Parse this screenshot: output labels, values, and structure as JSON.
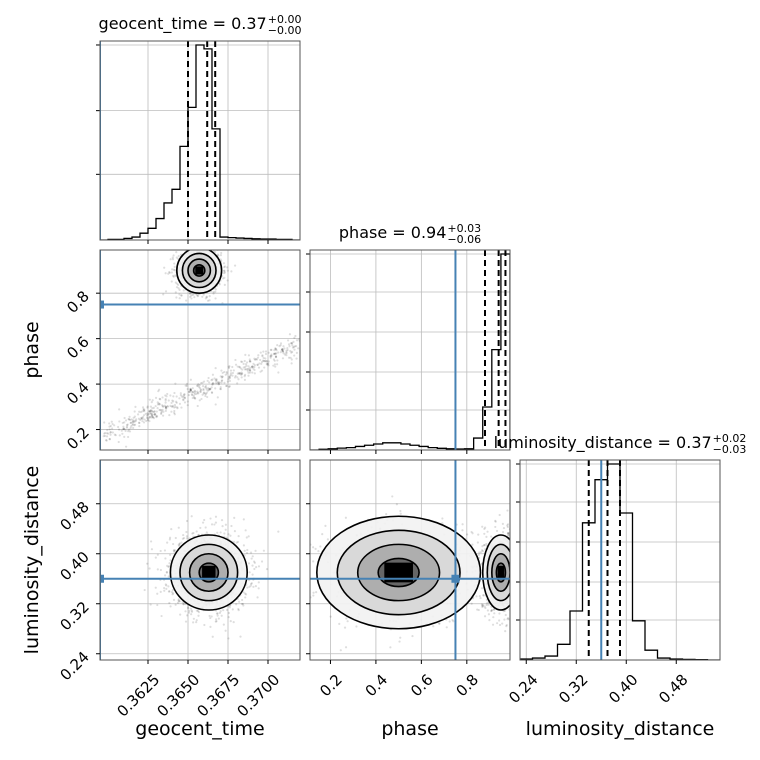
{
  "chart_data": {
    "type": "corner",
    "parameters": [
      "geocent_time",
      "phase",
      "luminosity_distance"
    ],
    "truth": {
      "geocent_time": 0.3595,
      "phase": 0.75,
      "luminosity_distance": 0.36
    },
    "truth_color": "#4682b4",
    "axes": {
      "geocent_time": {
        "range": [
          0.3595,
          0.372
        ],
        "ticks": [
          0.3625,
          0.365,
          0.3675,
          0.37
        ],
        "tick_labels": [
          "0.3625",
          "0.3650",
          "0.3675",
          "0.3700"
        ]
      },
      "phase": {
        "range": [
          0.11,
          0.99
        ],
        "ticks": [
          0.2,
          0.4,
          0.6,
          0.8
        ],
        "tick_labels": [
          "0.2",
          "0.4",
          "0.6",
          "0.8"
        ]
      },
      "luminosity_distance": {
        "range": [
          0.23,
          0.55
        ],
        "ticks": [
          0.24,
          0.32,
          0.4,
          0.48
        ],
        "tick_labels": [
          "0.24",
          "0.32",
          "0.40",
          "0.48"
        ]
      }
    },
    "titles": [
      {
        "param": "geocent_time",
        "text": "geocent_time = 0.37",
        "sup": "+0.00",
        "sub": "−0.00"
      },
      {
        "param": "phase",
        "text": "phase = 0.94",
        "sup": "+0.03",
        "sub": "−0.06"
      },
      {
        "param": "luminosity_distance",
        "text": "luminosity_distance = 0.37",
        "sup": "+0.02",
        "sub": "−0.03"
      }
    ],
    "histograms": {
      "geocent_time": {
        "bin_edges": [
          0.3595,
          0.36,
          0.3605,
          0.361,
          0.3615,
          0.362,
          0.3625,
          0.363,
          0.3635,
          0.364,
          0.3645,
          0.365,
          0.3655,
          0.366,
          0.3665,
          0.367,
          0.3675,
          0.368,
          0.3685,
          0.369,
          0.3695,
          0.37,
          0.3705,
          0.371,
          0.3715,
          0.372
        ],
        "counts": [
          0,
          0.3,
          0.3,
          0.8,
          1.5,
          3.5,
          6,
          11,
          19,
          26,
          48,
          68,
          100,
          98,
          57,
          1.5,
          1.2,
          1,
          0.8,
          0.6,
          0.5,
          0.5,
          0.3,
          0.3,
          0
        ],
        "quantiles": [
          0.365,
          0.3662,
          0.3667
        ],
        "ytick_fractions": [
          0.33,
          0.65,
          0.98
        ]
      },
      "phase": {
        "bin_edges": [
          0.11,
          0.15,
          0.19,
          0.23,
          0.27,
          0.31,
          0.35,
          0.39,
          0.43,
          0.47,
          0.51,
          0.55,
          0.59,
          0.63,
          0.67,
          0.71,
          0.75,
          0.79,
          0.83,
          0.87,
          0.91,
          0.95,
          0.99
        ],
        "counts": [
          0,
          0.3,
          0.5,
          0.8,
          1,
          1.5,
          2,
          2.5,
          3,
          3,
          2.5,
          2,
          1.5,
          1,
          0.7,
          0.5,
          0.4,
          0.5,
          5,
          18,
          42,
          82
        ],
        "quantiles": [
          0.88,
          0.94,
          0.97
        ],
        "ytick_fractions": [
          0.2,
          0.39,
          0.59,
          0.79,
          0.98
        ]
      },
      "luminosity_distance": {
        "bin_edges": [
          0.23,
          0.25,
          0.27,
          0.29,
          0.31,
          0.33,
          0.35,
          0.37,
          0.39,
          0.41,
          0.43,
          0.45,
          0.47,
          0.49,
          0.51,
          0.53,
          0.55
        ],
        "counts": [
          0.5,
          1,
          2,
          8,
          25,
          70,
          92,
          100,
          75,
          20,
          5,
          1,
          0.5,
          0.3,
          0.2,
          0
        ],
        "quantiles": [
          0.34,
          0.37,
          0.39
        ],
        "ytick_fractions": [
          0.2,
          0.39,
          0.59,
          0.79,
          0.98
        ]
      }
    },
    "density_2d": [
      {
        "x": "geocent_time",
        "y": "phase",
        "modes": [
          {
            "type": "linear",
            "x0": 0.3598,
            "y0": 0.18,
            "x1": 0.3718,
            "y1": 0.57,
            "spread_x": 0.0002,
            "spread_y": 0.025,
            "weight": 0.35
          },
          {
            "type": "gauss",
            "cx": 0.3657,
            "cy": 0.9,
            "sx": 0.0007,
            "sy": 0.05,
            "weight": 0.65
          }
        ]
      },
      {
        "x": "geocent_time",
        "y": "luminosity_distance",
        "modes": [
          {
            "type": "gauss",
            "cx": 0.3663,
            "cy": 0.37,
            "sx": 0.0012,
            "sy": 0.03,
            "weight": 1.0
          }
        ]
      },
      {
        "x": "phase",
        "y": "luminosity_distance",
        "modes": [
          {
            "type": "gauss",
            "cx": 0.5,
            "cy": 0.37,
            "sx": 0.18,
            "sy": 0.045,
            "weight": 0.3
          },
          {
            "type": "gauss",
            "cx": 0.95,
            "cy": 0.37,
            "sx": 0.04,
            "sy": 0.03,
            "weight": 0.7
          }
        ]
      }
    ],
    "grid": true,
    "plot_range_title": ""
  }
}
